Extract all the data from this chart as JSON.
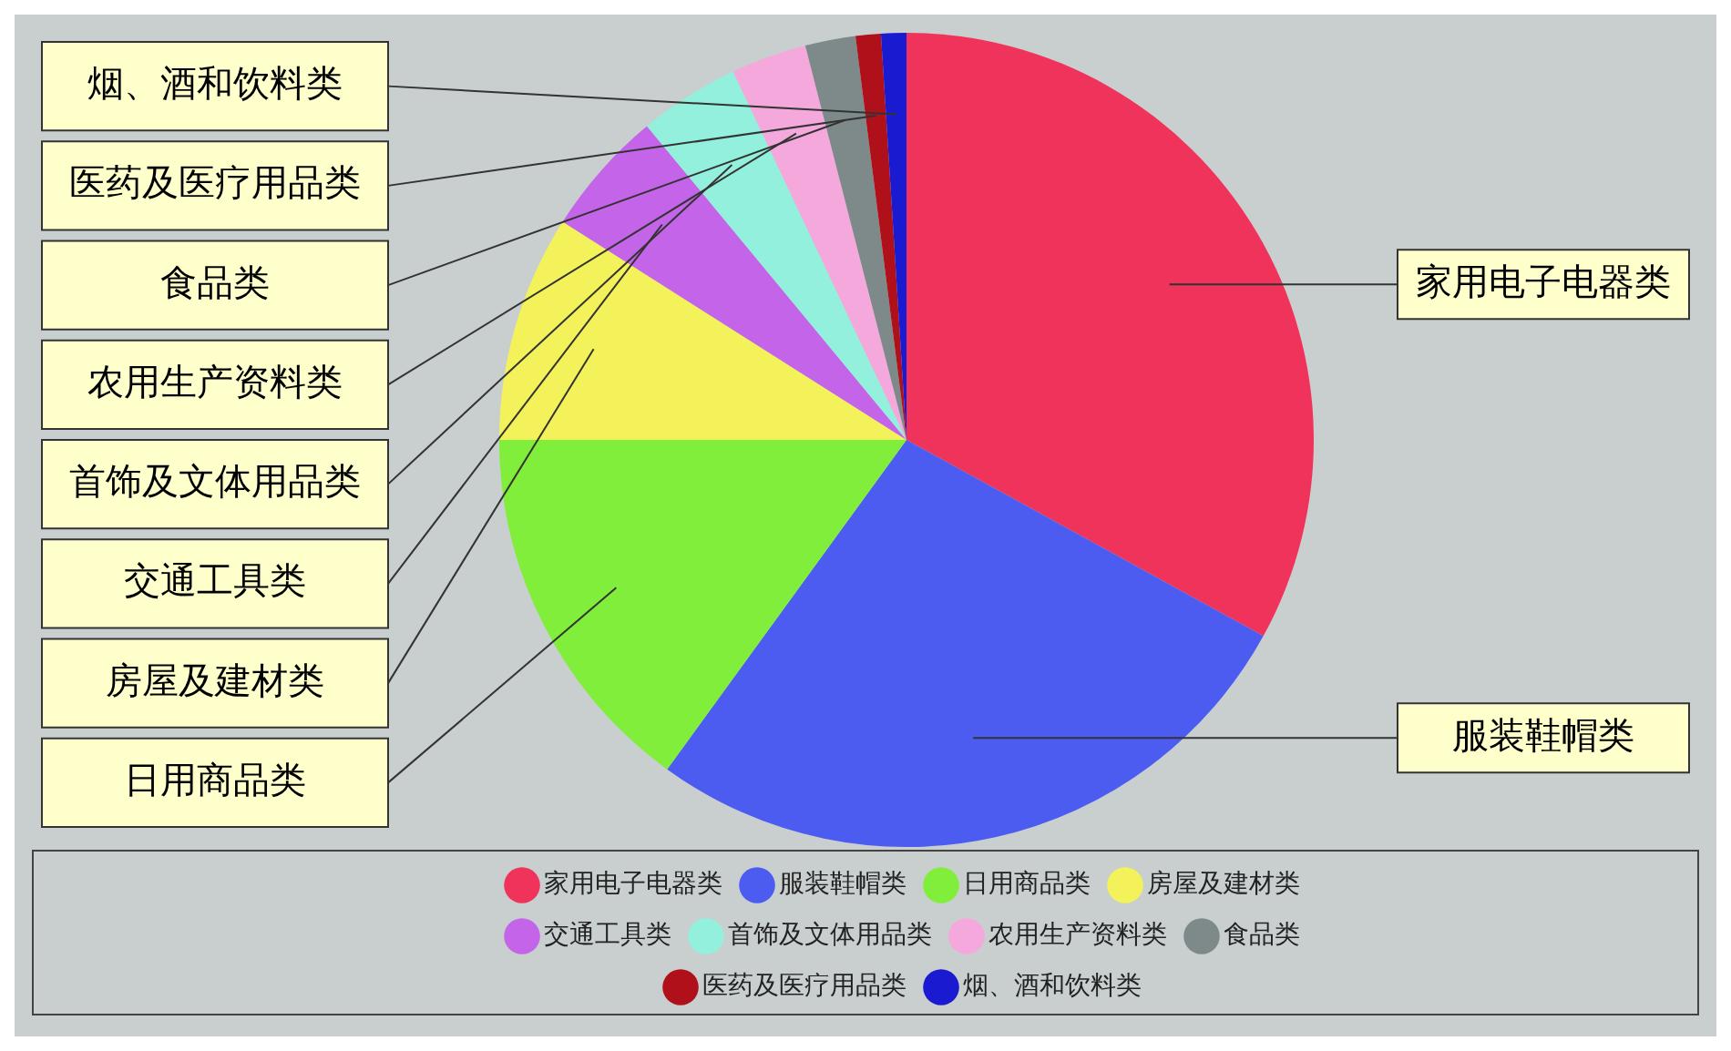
{
  "chart_data": {
    "type": "pie",
    "categories": [
      "家用电子电器类",
      "服装鞋帽类",
      "日用商品类",
      "房屋及建材类",
      "交通工具类",
      "首饰及文体用品类",
      "农用生产资料类",
      "食品类",
      "医药及医疗用品类",
      "烟、酒和饮料类"
    ],
    "values": [
      33,
      27,
      15,
      9,
      5,
      4,
      3,
      2,
      1,
      1
    ],
    "colors": [
      "#f0335a",
      "#4d5cf0",
      "#80ee3a",
      "#f4f25a",
      "#c464e8",
      "#93f0dc",
      "#f5a8dc",
      "#7e8a8a",
      "#b0101a",
      "#1a1ad0"
    ],
    "legend": "bottom"
  }
}
